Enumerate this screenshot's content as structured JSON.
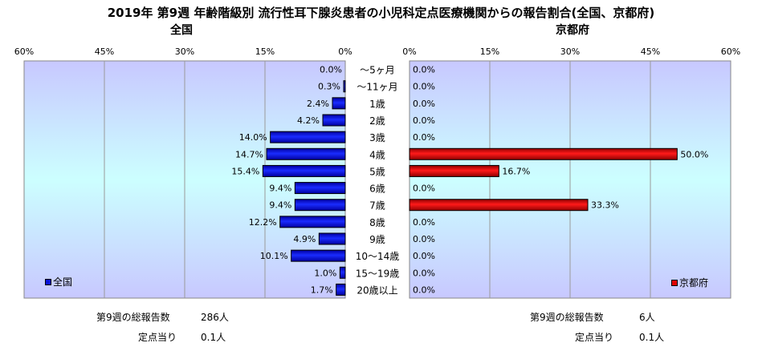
{
  "title": "2019年 第9週 年齢階級別 流行性耳下腺炎患者の小児科定点医療機関からの報告割合(全国、京都府)",
  "chart_data": [
    {
      "type": "bar",
      "orientation": "horizontal",
      "direction": "right-to-left",
      "title": "全国",
      "categories": [
        "～5ヶ月",
        "～11ヶ月",
        "1歳",
        "2歳",
        "3歳",
        "4歳",
        "5歳",
        "6歳",
        "7歳",
        "8歳",
        "9歳",
        "10～14歳",
        "15～19歳",
        "20歳以上"
      ],
      "series": [
        {
          "name": "全国",
          "values": [
            0.0,
            0.3,
            2.4,
            4.2,
            14.0,
            14.7,
            15.4,
            9.4,
            9.4,
            12.2,
            4.9,
            10.1,
            1.0,
            1.7
          ],
          "color": "#0a14d8"
        }
      ],
      "data_labels": [
        "0.0%",
        "0.3%",
        "2.4%",
        "4.2%",
        "14.0%",
        "14.7%",
        "15.4%",
        "9.4%",
        "9.4%",
        "12.2%",
        "4.9%",
        "10.1%",
        "1.0%",
        "1.7%"
      ],
      "xlim": [
        0,
        60
      ],
      "x_ticks": [
        "60%",
        "45%",
        "30%",
        "15%",
        "0%"
      ],
      "grid": true,
      "legend_position": "bottom-left"
    },
    {
      "type": "bar",
      "orientation": "horizontal",
      "direction": "left-to-right",
      "title": "京都府",
      "categories": [
        "～5ヶ月",
        "～11ヶ月",
        "1歳",
        "2歳",
        "3歳",
        "4歳",
        "5歳",
        "6歳",
        "7歳",
        "8歳",
        "9歳",
        "10～14歳",
        "15～19歳",
        "20歳以上"
      ],
      "series": [
        {
          "name": "京都府",
          "values": [
            0.0,
            0.0,
            0.0,
            0.0,
            0.0,
            50.0,
            16.7,
            0.0,
            33.3,
            0.0,
            0.0,
            0.0,
            0.0,
            0.0
          ],
          "color": "#e00000"
        }
      ],
      "data_labels": [
        "0.0%",
        "0.0%",
        "0.0%",
        "0.0%",
        "0.0%",
        "50.0%",
        "16.7%",
        "0.0%",
        "33.3%",
        "0.0%",
        "0.0%",
        "0.0%",
        "0.0%",
        "0.0%"
      ],
      "xlim": [
        0,
        60
      ],
      "x_ticks": [
        "0%",
        "15%",
        "30%",
        "45%",
        "60%"
      ],
      "grid": true,
      "legend_position": "bottom-right"
    }
  ],
  "footer": {
    "left": {
      "total_label": "第9週の総報告数",
      "total_value": "286人",
      "per_label": "定点当り",
      "per_value": "0.1人"
    },
    "right": {
      "total_label": "第9週の総報告数",
      "total_value": "6人",
      "per_label": "定点当り",
      "per_value": "0.1人"
    }
  }
}
